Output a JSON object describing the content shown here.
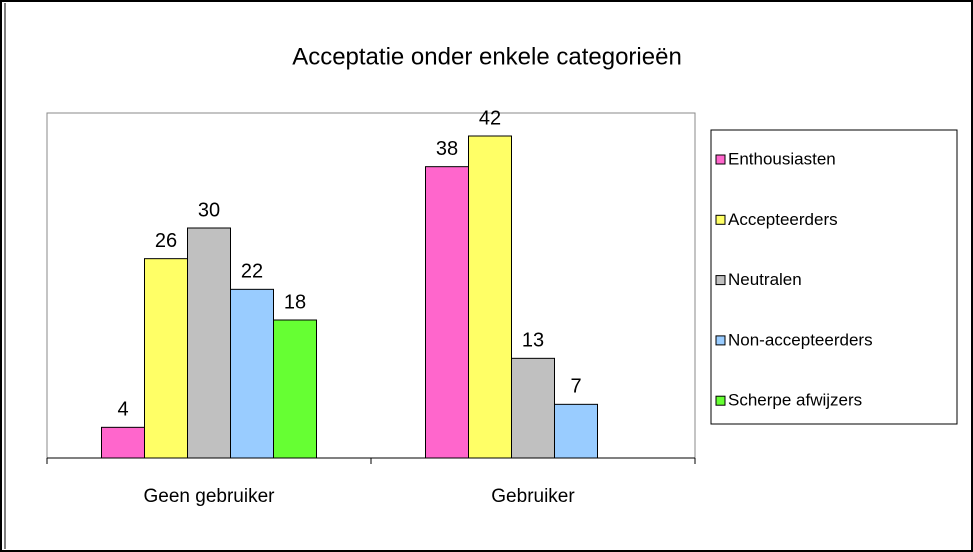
{
  "chart_data": {
    "type": "bar",
    "title": "Acceptatie onder enkele categorieën",
    "categories": [
      "Geen gebruiker",
      "Gebruiker"
    ],
    "series": [
      {
        "name": "Enthousiasten",
        "color": "#ff66cc",
        "values": [
          4,
          38
        ]
      },
      {
        "name": "Accepteerders",
        "color": "#ffff66",
        "values": [
          26,
          42
        ]
      },
      {
        "name": "Neutralen",
        "color": "#c0c0c0",
        "values": [
          30,
          13
        ]
      },
      {
        "name": "Non-accepteerders",
        "color": "#99ccff",
        "values": [
          22,
          7
        ]
      },
      {
        "name": "Scherpe afwijzers",
        "color": "#66ff33",
        "values": [
          18,
          null
        ]
      }
    ],
    "ylim": [
      0,
      45
    ],
    "legend": "right"
  }
}
